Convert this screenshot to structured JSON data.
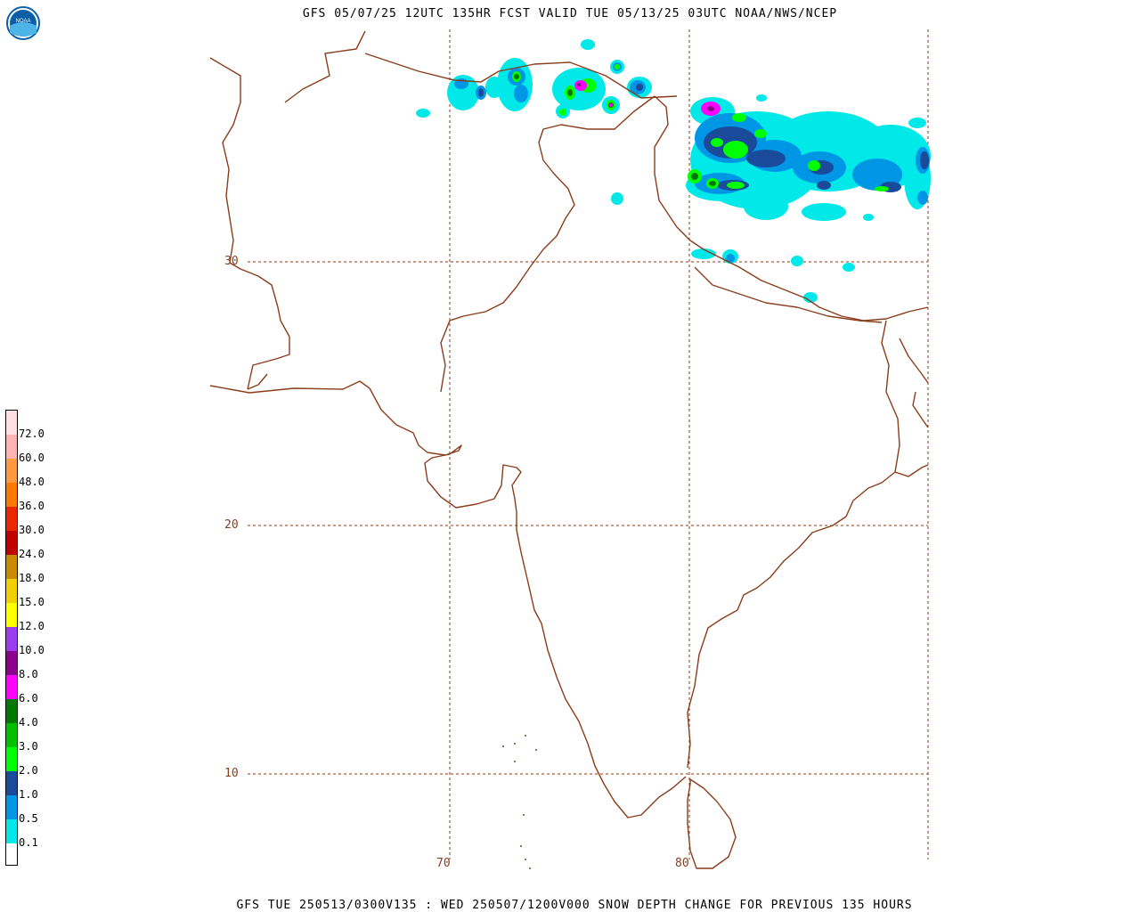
{
  "header": {
    "title": "GFS 05/07/25 12UTC 135HR FCST VALID TUE 05/13/25 03UTC NOAA/NWS/NCEP"
  },
  "footer": {
    "text": "GFS TUE 250513/0300V135 : WED 250507/1200V000 SNOW DEPTH CHANGE FOR PREVIOUS 135 HOURS"
  },
  "logo": {
    "text": "NOAA",
    "icon": "noaa-logo-icon"
  },
  "map": {
    "coastline_color": "#8a3d1a",
    "grid_color": "#8a3d1a",
    "lat_labels": [
      "30",
      "20",
      "10"
    ],
    "lon_labels": [
      "70",
      "80"
    ]
  },
  "legend": {
    "levels": [
      {
        "label": "0.1",
        "color": "#00e8e8"
      },
      {
        "label": "0.5",
        "color": "#0096e6"
      },
      {
        "label": "1.0",
        "color": "#1a4a9a"
      },
      {
        "label": "2.0",
        "color": "#00ff00"
      },
      {
        "label": "3.0",
        "color": "#00c000"
      },
      {
        "label": "4.0",
        "color": "#007800"
      },
      {
        "label": "6.0",
        "color": "#ff00ff"
      },
      {
        "label": "8.0",
        "color": "#8a008a"
      },
      {
        "label": "10.0",
        "color": "#9b3cf0"
      },
      {
        "label": "12.0",
        "color": "#ffff00"
      },
      {
        "label": "15.0",
        "color": "#f0d000"
      },
      {
        "label": "18.0",
        "color": "#c88c00"
      },
      {
        "label": "24.0",
        "color": "#c00000"
      },
      {
        "label": "30.0",
        "color": "#e82800"
      },
      {
        "label": "36.0",
        "color": "#ff7800"
      },
      {
        "label": "48.0",
        "color": "#ff9a40"
      },
      {
        "label": "60.0",
        "color": "#ffb4b4"
      },
      {
        "label": "72.0",
        "color": "#ffe0e0"
      }
    ]
  }
}
